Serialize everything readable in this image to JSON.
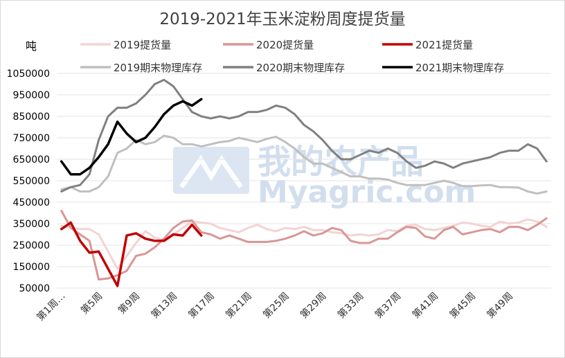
{
  "chart_data": {
    "type": "line",
    "title": "2019-2021年玉米淀粉周度提货量",
    "unit_label": "吨",
    "ylim": [
      50000,
      1050000
    ],
    "yticks": [
      50000,
      150000,
      250000,
      350000,
      450000,
      550000,
      650000,
      750000,
      850000,
      950000,
      1050000
    ],
    "ytick_labels": [
      "50000",
      "150000",
      "250000",
      "350000",
      "450000",
      "550000",
      "650000",
      "750000",
      "850000",
      "950000",
      "1050000"
    ],
    "xtick_labels": [
      "第1周…",
      "第5周",
      "第9周",
      "第13周",
      "第17周",
      "第21周",
      "第25周",
      "第29周",
      "第33周",
      "第37周",
      "第41周",
      "第45周",
      "第49周"
    ],
    "num_weeks": 53,
    "grid": "horizontal",
    "legend_position": "top",
    "watermark": {
      "line1": "我的农产品",
      "line2": "Myagric.com"
    },
    "series": [
      {
        "name": "2019提货量",
        "color": "#f3d3d3",
        "width": 3,
        "values": [
          340000,
          330000,
          325000,
          325000,
          300000,
          220000,
          140000,
          200000,
          260000,
          315000,
          285000,
          275000,
          300000,
          330000,
          360000,
          355000,
          350000,
          330000,
          320000,
          310000,
          330000,
          345000,
          325000,
          315000,
          330000,
          325000,
          335000,
          320000,
          320000,
          310000,
          305000,
          295000,
          300000,
          295000,
          300000,
          320000,
          315000,
          340000,
          345000,
          325000,
          320000,
          330000,
          340000,
          355000,
          350000,
          340000,
          335000,
          360000,
          350000,
          355000,
          370000,
          360000,
          335000
        ]
      },
      {
        "name": "2020提货量",
        "color": "#d99694",
        "width": 3,
        "values": [
          410000,
          330000,
          300000,
          270000,
          90000,
          95000,
          110000,
          130000,
          200000,
          210000,
          240000,
          280000,
          330000,
          360000,
          365000,
          310000,
          300000,
          280000,
          295000,
          280000,
          265000,
          265000,
          265000,
          270000,
          280000,
          295000,
          315000,
          295000,
          305000,
          330000,
          320000,
          270000,
          260000,
          260000,
          280000,
          280000,
          310000,
          335000,
          330000,
          290000,
          280000,
          320000,
          335000,
          300000,
          310000,
          320000,
          325000,
          310000,
          335000,
          335000,
          320000,
          345000,
          375000
        ]
      },
      {
        "name": "2021提货量",
        "color": "#c00000",
        "width": 3.5,
        "values": [
          325000,
          355000,
          270000,
          215000,
          220000,
          140000,
          60000,
          295000,
          305000,
          280000,
          270000,
          270000,
          300000,
          295000,
          345000,
          295000
        ]
      },
      {
        "name": "2019期末物理库存",
        "color": "#bfbfbf",
        "width": 3,
        "values": [
          510000,
          520000,
          500000,
          500000,
          520000,
          570000,
          680000,
          700000,
          740000,
          720000,
          730000,
          760000,
          750000,
          720000,
          720000,
          710000,
          720000,
          730000,
          735000,
          750000,
          740000,
          730000,
          745000,
          755000,
          730000,
          700000,
          660000,
          630000,
          630000,
          610000,
          590000,
          570000,
          570000,
          560000,
          560000,
          555000,
          540000,
          530000,
          530000,
          530000,
          540000,
          550000,
          540000,
          525000,
          525000,
          528000,
          530000,
          520000,
          520000,
          518000,
          500000,
          490000,
          500000
        ]
      },
      {
        "name": "2020期末物理库存",
        "color": "#808080",
        "width": 3,
        "values": [
          500000,
          520000,
          530000,
          580000,
          740000,
          850000,
          890000,
          890000,
          910000,
          950000,
          1000000,
          1020000,
          990000,
          930000,
          870000,
          850000,
          840000,
          850000,
          840000,
          850000,
          870000,
          870000,
          880000,
          900000,
          890000,
          860000,
          810000,
          780000,
          740000,
          690000,
          650000,
          650000,
          670000,
          690000,
          680000,
          700000,
          680000,
          640000,
          610000,
          620000,
          640000,
          630000,
          610000,
          630000,
          640000,
          650000,
          660000,
          680000,
          690000,
          690000,
          720000,
          700000,
          640000
        ]
      },
      {
        "name": "2021期末物理库存",
        "color": "#000000",
        "width": 3.5,
        "values": [
          640000,
          580000,
          580000,
          610000,
          660000,
          720000,
          825000,
          770000,
          730000,
          750000,
          800000,
          860000,
          900000,
          920000,
          900000,
          930000
        ]
      }
    ]
  }
}
